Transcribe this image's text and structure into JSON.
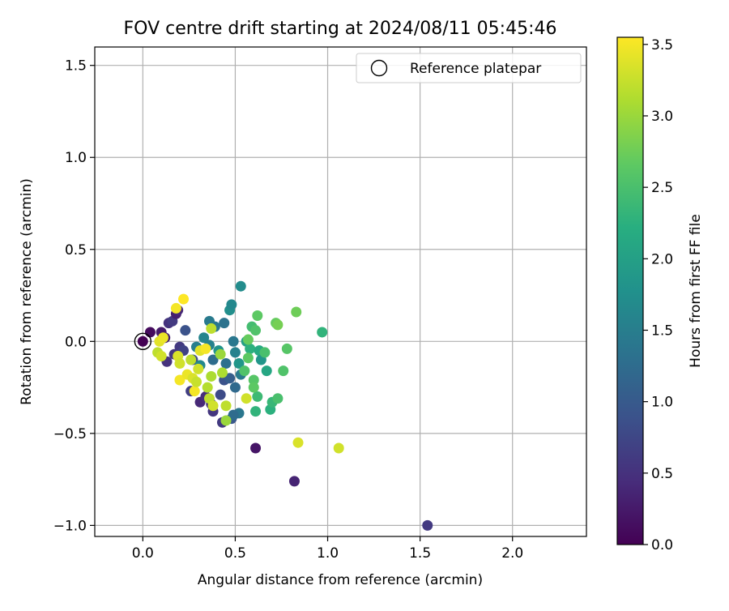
{
  "chart_data": {
    "type": "scatter",
    "title": "FOV centre drift starting at 2024/08/11 05:45:46",
    "xlabel": "Angular distance from reference (arcmin)",
    "ylabel": "Rotation from reference (arcmin)",
    "xlim": [
      -0.26,
      2.4
    ],
    "ylim": [
      -1.06,
      1.6
    ],
    "xticks": [
      0.0,
      0.5,
      1.0,
      1.5,
      2.0
    ],
    "xtick_labels": [
      "0.0",
      "0.5",
      "1.0",
      "1.5",
      "2.0"
    ],
    "yticks": [
      -1.0,
      -0.5,
      0.0,
      0.5,
      1.0,
      1.5
    ],
    "ytick_labels": [
      "−1.0",
      "−0.5",
      "0.0",
      "0.5",
      "1.0",
      "1.5"
    ],
    "grid": true,
    "legend": {
      "placement": "top-right",
      "entries": [
        "Reference platepar"
      ]
    },
    "reference_point": {
      "x": 0.0,
      "y": 0.0,
      "hours": 0.0
    },
    "colorbar": {
      "label": "Hours from first FF file",
      "colormap": "viridis",
      "range": [
        0.0,
        3.55
      ],
      "ticks": [
        0.0,
        0.5,
        1.0,
        1.5,
        2.0,
        2.5,
        3.0,
        3.5
      ],
      "tick_labels": [
        "0.0",
        "0.5",
        "1.0",
        "1.5",
        "2.0",
        "2.5",
        "3.0",
        "3.5"
      ]
    },
    "points": [
      {
        "x": 0.0,
        "y": 0.0,
        "h": 0.0
      },
      {
        "x": 0.04,
        "y": 0.05,
        "h": 0.1
      },
      {
        "x": 0.1,
        "y": 0.05,
        "h": 0.25
      },
      {
        "x": 0.12,
        "y": 0.02,
        "h": 0.3
      },
      {
        "x": 0.14,
        "y": 0.1,
        "h": 0.5
      },
      {
        "x": 0.16,
        "y": 0.11,
        "h": 0.6
      },
      {
        "x": 0.18,
        "y": 0.15,
        "h": 0.3
      },
      {
        "x": 0.19,
        "y": 0.17,
        "h": 0.4
      },
      {
        "x": 0.13,
        "y": -0.11,
        "h": 0.5
      },
      {
        "x": 0.17,
        "y": -0.07,
        "h": 0.55
      },
      {
        "x": 0.2,
        "y": -0.03,
        "h": 0.6
      },
      {
        "x": 0.22,
        "y": -0.05,
        "h": 0.7
      },
      {
        "x": 0.23,
        "y": 0.06,
        "h": 0.9
      },
      {
        "x": 0.27,
        "y": -0.1,
        "h": 0.8
      },
      {
        "x": 0.26,
        "y": -0.27,
        "h": 0.65
      },
      {
        "x": 0.31,
        "y": -0.33,
        "h": 0.4
      },
      {
        "x": 0.34,
        "y": -0.3,
        "h": 0.45
      },
      {
        "x": 0.37,
        "y": -0.34,
        "h": 0.5
      },
      {
        "x": 0.38,
        "y": -0.38,
        "h": 0.55
      },
      {
        "x": 0.43,
        "y": -0.44,
        "h": 0.6
      },
      {
        "x": 0.42,
        "y": -0.29,
        "h": 0.8
      },
      {
        "x": 0.44,
        "y": -0.21,
        "h": 0.9
      },
      {
        "x": 0.48,
        "y": -0.42,
        "h": 0.95
      },
      {
        "x": 0.47,
        "y": -0.2,
        "h": 1.05
      },
      {
        "x": 0.61,
        "y": -0.58,
        "h": 0.2
      },
      {
        "x": 0.82,
        "y": -0.76,
        "h": 0.35
      },
      {
        "x": 1.54,
        "y": -1.0,
        "h": 0.6
      },
      {
        "x": 0.33,
        "y": 0.02,
        "h": 1.6
      },
      {
        "x": 0.36,
        "y": 0.11,
        "h": 1.45
      },
      {
        "x": 0.39,
        "y": 0.08,
        "h": 1.4
      },
      {
        "x": 0.44,
        "y": 0.1,
        "h": 1.35
      },
      {
        "x": 0.47,
        "y": 0.17,
        "h": 1.75
      },
      {
        "x": 0.48,
        "y": 0.2,
        "h": 1.65
      },
      {
        "x": 0.53,
        "y": 0.3,
        "h": 1.7
      },
      {
        "x": 0.29,
        "y": -0.03,
        "h": 1.5
      },
      {
        "x": 0.31,
        "y": -0.13,
        "h": 1.65
      },
      {
        "x": 0.36,
        "y": -0.02,
        "h": 1.55
      },
      {
        "x": 0.38,
        "y": -0.1,
        "h": 1.25
      },
      {
        "x": 0.41,
        "y": -0.05,
        "h": 1.8
      },
      {
        "x": 0.45,
        "y": -0.12,
        "h": 1.3
      },
      {
        "x": 0.49,
        "y": 0.0,
        "h": 1.4
      },
      {
        "x": 0.5,
        "y": -0.06,
        "h": 1.55
      },
      {
        "x": 0.52,
        "y": -0.12,
        "h": 1.85
      },
      {
        "x": 0.53,
        "y": -0.18,
        "h": 1.45
      },
      {
        "x": 0.5,
        "y": -0.25,
        "h": 1.2
      },
      {
        "x": 0.52,
        "y": -0.39,
        "h": 1.4
      },
      {
        "x": 0.49,
        "y": -0.4,
        "h": 1.25
      },
      {
        "x": 0.56,
        "y": 0.0,
        "h": 2.0
      },
      {
        "x": 0.58,
        "y": -0.04,
        "h": 2.25
      },
      {
        "x": 0.59,
        "y": 0.08,
        "h": 2.45
      },
      {
        "x": 0.61,
        "y": 0.06,
        "h": 2.55
      },
      {
        "x": 0.62,
        "y": 0.14,
        "h": 2.65
      },
      {
        "x": 0.63,
        "y": -0.05,
        "h": 2.15
      },
      {
        "x": 0.64,
        "y": -0.1,
        "h": 1.85
      },
      {
        "x": 0.66,
        "y": -0.06,
        "h": 2.5
      },
      {
        "x": 0.67,
        "y": -0.16,
        "h": 2.1
      },
      {
        "x": 0.62,
        "y": -0.3,
        "h": 2.4
      },
      {
        "x": 0.61,
        "y": -0.38,
        "h": 2.3
      },
      {
        "x": 0.69,
        "y": -0.37,
        "h": 2.25
      },
      {
        "x": 0.7,
        "y": -0.33,
        "h": 2.35
      },
      {
        "x": 0.73,
        "y": -0.31,
        "h": 2.5
      },
      {
        "x": 0.72,
        "y": 0.1,
        "h": 2.7
      },
      {
        "x": 0.73,
        "y": 0.09,
        "h": 2.8
      },
      {
        "x": 0.76,
        "y": -0.16,
        "h": 2.55
      },
      {
        "x": 0.78,
        "y": -0.04,
        "h": 2.6
      },
      {
        "x": 0.83,
        "y": 0.16,
        "h": 2.75
      },
      {
        "x": 0.97,
        "y": 0.05,
        "h": 2.3
      },
      {
        "x": 0.57,
        "y": -0.09,
        "h": 2.65
      },
      {
        "x": 0.55,
        "y": -0.16,
        "h": 2.55
      },
      {
        "x": 0.6,
        "y": -0.21,
        "h": 2.6
      },
      {
        "x": 0.6,
        "y": -0.25,
        "h": 2.65
      },
      {
        "x": 0.57,
        "y": 0.01,
        "h": 2.7
      },
      {
        "x": 0.08,
        "y": -0.06,
        "h": 3.2
      },
      {
        "x": 0.09,
        "y": 0.0,
        "h": 3.4
      },
      {
        "x": 0.1,
        "y": -0.08,
        "h": 3.3
      },
      {
        "x": 0.11,
        "y": 0.02,
        "h": 3.45
      },
      {
        "x": 0.18,
        "y": 0.18,
        "h": 3.5
      },
      {
        "x": 0.22,
        "y": 0.23,
        "h": 3.55
      },
      {
        "x": 0.19,
        "y": -0.08,
        "h": 3.35
      },
      {
        "x": 0.2,
        "y": -0.12,
        "h": 3.3
      },
      {
        "x": 0.2,
        "y": -0.21,
        "h": 3.5
      },
      {
        "x": 0.24,
        "y": -0.18,
        "h": 3.45
      },
      {
        "x": 0.26,
        "y": -0.1,
        "h": 3.2
      },
      {
        "x": 0.27,
        "y": -0.2,
        "h": 3.35
      },
      {
        "x": 0.28,
        "y": -0.27,
        "h": 3.5
      },
      {
        "x": 0.29,
        "y": -0.22,
        "h": 3.25
      },
      {
        "x": 0.3,
        "y": -0.15,
        "h": 3.3
      },
      {
        "x": 0.31,
        "y": -0.05,
        "h": 3.4
      },
      {
        "x": 0.34,
        "y": -0.04,
        "h": 3.5
      },
      {
        "x": 0.35,
        "y": -0.25,
        "h": 3.15
      },
      {
        "x": 0.36,
        "y": -0.31,
        "h": 3.2
      },
      {
        "x": 0.37,
        "y": -0.19,
        "h": 3.1
      },
      {
        "x": 0.38,
        "y": -0.35,
        "h": 3.3
      },
      {
        "x": 0.37,
        "y": 0.07,
        "h": 3.2
      },
      {
        "x": 0.42,
        "y": -0.07,
        "h": 3.0
      },
      {
        "x": 0.43,
        "y": -0.17,
        "h": 3.1
      },
      {
        "x": 0.45,
        "y": -0.35,
        "h": 3.2
      },
      {
        "x": 0.45,
        "y": -0.43,
        "h": 3.0
      },
      {
        "x": 0.56,
        "y": -0.31,
        "h": 3.3
      },
      {
        "x": 0.84,
        "y": -0.55,
        "h": 3.35
      },
      {
        "x": 1.06,
        "y": -0.58,
        "h": 3.3
      }
    ]
  }
}
